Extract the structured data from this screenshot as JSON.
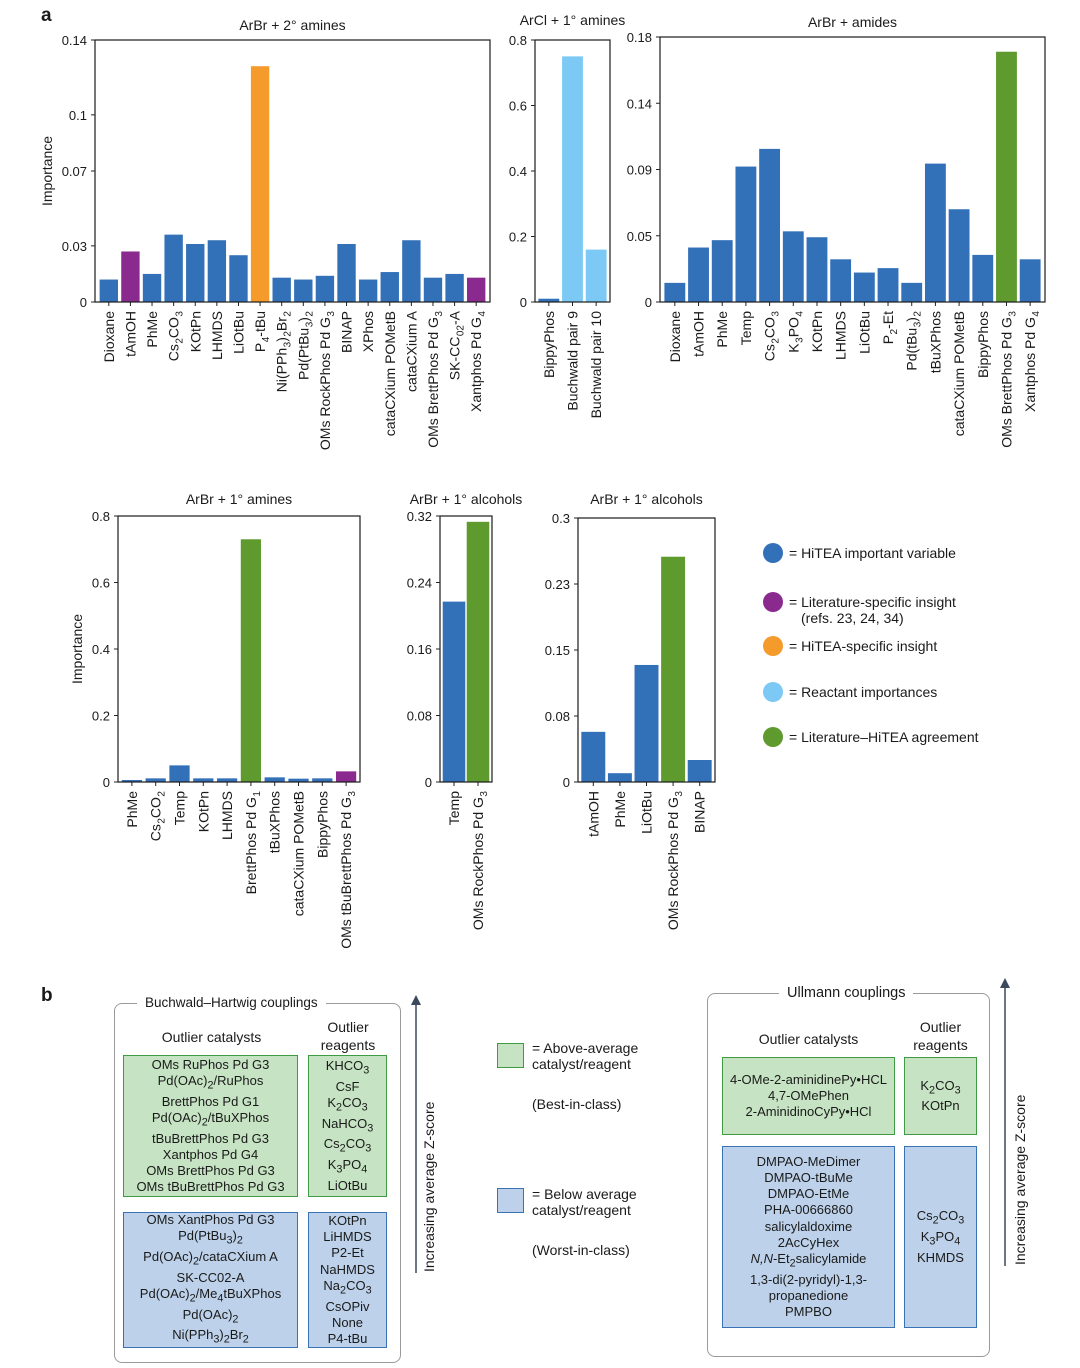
{
  "panel_a_letter": "a",
  "panel_b_letter": "b",
  "colors": {
    "hitea": "#3270b8",
    "literature": "#8b2a8e",
    "hitea_specific": "#f59b2c",
    "reactant": "#7cc9f5",
    "agreement": "#5e9a2e"
  },
  "chart_data": [
    {
      "type": "bar",
      "title": "ArBr + 2° amines",
      "ylabel": "Importance",
      "ylim": [
        0,
        0.14
      ],
      "yticks": [
        "0",
        "0.03",
        "0.07",
        "0.1",
        "0.14"
      ],
      "ytick_values": [
        0,
        0.03,
        0.07,
        0.1,
        0.14
      ],
      "categories": [
        "Dioxane",
        "tAmOH",
        "PhMe",
        "Cs2CO3",
        "KOtPn",
        "LHMDS",
        "LiOtBu",
        "P4-tBu",
        "Ni(PPh3)2Br2",
        "Pd(PtBu3)2",
        "OMs RockPhos Pd G3",
        "BINAP",
        "XPhos",
        "cataCXium POMetB",
        "cataCXium A",
        "OMs BrettPhos Pd G3",
        "SK-CC02-A",
        "Xantphos Pd G4"
      ],
      "values": [
        0.012,
        0.027,
        0.015,
        0.036,
        0.031,
        0.033,
        0.025,
        0.126,
        0.013,
        0.012,
        0.014,
        0.031,
        0.012,
        0.016,
        0.033,
        0.013,
        0.015,
        0.013
      ],
      "colors": [
        "hitea",
        "literature",
        "hitea",
        "hitea",
        "hitea",
        "hitea",
        "hitea",
        "hitea_specific",
        "hitea",
        "hitea",
        "hitea",
        "hitea",
        "hitea",
        "hitea",
        "hitea",
        "hitea",
        "hitea",
        "literature"
      ]
    },
    {
      "type": "bar",
      "title": "ArCl + 1° amines",
      "ylabel": "",
      "ylim": [
        0,
        0.8
      ],
      "yticks": [
        "0",
        "0.2",
        "0.4",
        "0.6",
        "0.8"
      ],
      "ytick_values": [
        0,
        0.2,
        0.4,
        0.6,
        0.8
      ],
      "categories": [
        "BippyPhos",
        "Buchwald pair 9",
        "Buchwald pair 10"
      ],
      "values": [
        0.01,
        0.75,
        0.16
      ],
      "colors": [
        "hitea",
        "reactant",
        "reactant"
      ]
    },
    {
      "type": "bar",
      "title": "ArBr + amides",
      "ylabel": "",
      "ylim": [
        0,
        0.18
      ],
      "yticks": [
        "0",
        "0.05",
        "0.09",
        "0.14",
        "0.18"
      ],
      "ytick_values": [
        0,
        0.045,
        0.09,
        0.135,
        0.18
      ],
      "categories": [
        "Dioxane",
        "tAmOH",
        "PhMe",
        "Temp",
        "Cs2CO3",
        "K3PO4",
        "KOtPn",
        "LHMDS",
        "LiOtBu",
        "P2-Et",
        "Pd(tBu3)2",
        "tBuXPhos",
        "cataCXium POMetB",
        "BippyPhos",
        "OMs BrettPhos Pd G3",
        "Xantphos Pd G4"
      ],
      "values": [
        0.013,
        0.037,
        0.042,
        0.092,
        0.104,
        0.048,
        0.044,
        0.029,
        0.02,
        0.023,
        0.013,
        0.094,
        0.063,
        0.032,
        0.17,
        0.029
      ],
      "colors": [
        "hitea",
        "hitea",
        "hitea",
        "hitea",
        "hitea",
        "hitea",
        "hitea",
        "hitea",
        "hitea",
        "hitea",
        "hitea",
        "hitea",
        "hitea",
        "hitea",
        "agreement",
        "hitea"
      ]
    },
    {
      "type": "bar",
      "title": "ArBr + 1° amines",
      "ylabel": "Importance",
      "ylim": [
        0,
        0.8
      ],
      "yticks": [
        "0",
        "0.2",
        "0.4",
        "0.6",
        "0.8"
      ],
      "ytick_values": [
        0,
        0.2,
        0.4,
        0.6,
        0.8
      ],
      "categories": [
        "PhMe",
        "Cs2CO2",
        "Temp",
        "KOtPn",
        "LHMDS",
        "BrettPhos Pd G1",
        "tBuXPhos",
        "cataCXium POMetB",
        "BippyPhos",
        "OMs tBuBrettPhos Pd G3"
      ],
      "values": [
        0.006,
        0.011,
        0.05,
        0.011,
        0.011,
        0.73,
        0.014,
        0.01,
        0.011,
        0.032
      ],
      "colors": [
        "hitea",
        "hitea",
        "hitea",
        "hitea",
        "hitea",
        "agreement",
        "hitea",
        "hitea",
        "hitea",
        "literature"
      ]
    },
    {
      "type": "bar",
      "title": "ArBr + 1° alcohols",
      "ylabel": "",
      "ylim": [
        0,
        0.32
      ],
      "yticks": [
        "0",
        "0.08",
        "0.16",
        "0.24",
        "0.32"
      ],
      "ytick_values": [
        0,
        0.08,
        0.16,
        0.24,
        0.32
      ],
      "categories": [
        "Temp",
        "OMs RockPhos Pd G3"
      ],
      "values": [
        0.217,
        0.313
      ],
      "colors": [
        "hitea",
        "agreement"
      ]
    },
    {
      "type": "bar",
      "title": "ArBr + 1° alcohols",
      "ylabel": "",
      "ylim": [
        0,
        0.3
      ],
      "yticks": [
        "0",
        "0.08",
        "0.15",
        "0.23",
        "0.3"
      ],
      "ytick_values": [
        0,
        0.075,
        0.15,
        0.225,
        0.3
      ],
      "categories": [
        "tAmOH",
        "PhMe",
        "LiOtBu",
        "OMs RockPhos Pd G3",
        "BINAP"
      ],
      "values": [
        0.057,
        0.01,
        0.133,
        0.256,
        0.025
      ],
      "colors": [
        "hitea",
        "hitea",
        "hitea",
        "agreement",
        "hitea"
      ]
    }
  ],
  "legend": [
    {
      "color": "hitea",
      "text": "= HiTEA important variable",
      "sub": ""
    },
    {
      "color": "literature",
      "text": "= Literature-specific insight",
      "sub": "(refs. 23, 24, 34)"
    },
    {
      "color": "hitea_specific",
      "text": "= HiTEA-specific insight",
      "sub": ""
    },
    {
      "color": "reactant",
      "text": "= Reactant importances",
      "sub": ""
    },
    {
      "color": "agreement",
      "text": "= Literature–HiTEA agreement",
      "sub": ""
    }
  ],
  "panel_b": {
    "bh": {
      "title": "Buchwald–Hartwig couplings",
      "catalysts_head": "Outlier catalysts",
      "reagents_head": "Outlier reagents",
      "above_catalysts": [
        "OMs RuPhos Pd G3",
        "Pd(OAc)2/RuPhos",
        "BrettPhos Pd G1",
        "Pd(OAc)2/tBuXPhos",
        "tBuBrettPhos Pd G3",
        "Xantphos Pd G4",
        "OMs BrettPhos Pd G3",
        "OMs tBuBrettPhos Pd G3"
      ],
      "above_reagents": [
        "KHCO3",
        "CsF",
        "K2CO3",
        "NaHCO3",
        "Cs2CO3",
        "K3PO4",
        "LiOtBu"
      ],
      "below_catalysts": [
        "OMs XantPhos Pd G3",
        "Pd(PtBu3)2",
        "Pd(OAc)2/cataCXium A",
        "SK-CC02-A",
        "Pd(OAc)2/Me4tBuXPhos",
        "Pd(OAc)2",
        "Ni(PPh3)2Br2"
      ],
      "below_reagents": [
        "KOtPn",
        "LiHMDS",
        "P2-Et",
        "NaHMDS",
        "Na2CO3",
        "CsOPiv",
        "None",
        "P4-tBu"
      ],
      "axis_label": "Increasing average Z-score"
    },
    "key": {
      "above_label": "= Above-average catalyst/reagent",
      "above_note": "(Best-in-class)",
      "below_label": "= Below average catalyst/reagent",
      "below_note": "(Worst-in-class)"
    },
    "ullmann": {
      "title": "Ullmann couplings",
      "catalysts_head": "Outlier catalysts",
      "reagents_head": "Outlier reagents",
      "above_catalysts": [
        "4-OMe-2-aminidinePy•HCL",
        "4,7-OMePhen",
        "2-AminidinoCyPy•HCl"
      ],
      "above_reagents": [
        "K2CO3",
        "KOtPn"
      ],
      "below_catalysts": [
        "DMPAO-MeDimer",
        "DMPAO-tBuMe",
        "DMPAO-EtMe",
        "PHA-00666860",
        "salicylaldoxime",
        "2AcCyHex",
        "N,N-Et2salicylamide",
        "1,3-di(2-pyridyl)-1,3-",
        "propanedione",
        "PMPBO"
      ],
      "below_reagents": [
        "Cs2CO3",
        "K3PO4",
        "KHMDS"
      ],
      "axis_label": "Increasing average Z-score"
    }
  }
}
